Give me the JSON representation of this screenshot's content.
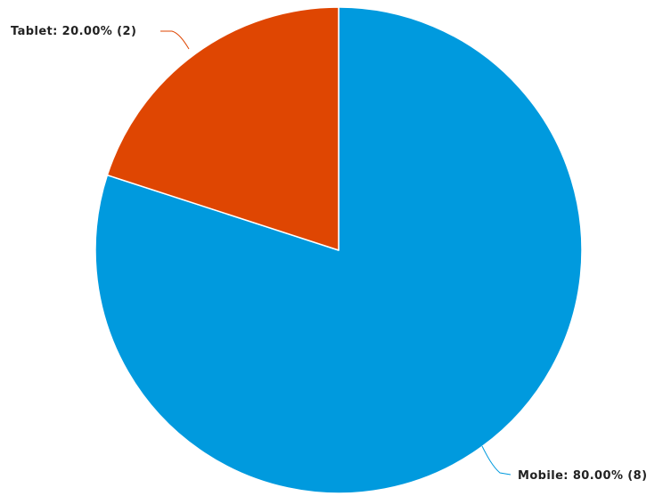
{
  "chart_data": {
    "type": "pie",
    "title": "",
    "start_angle_deg": 0,
    "direction": "clockwise",
    "slices": [
      {
        "label": "Mobile",
        "value": 8,
        "percent": "80.00%",
        "display": "Mobile: 80.00% (8)",
        "color": "#009ade"
      },
      {
        "label": "Tablet",
        "value": 2,
        "percent": "20.00%",
        "display": "Tablet: 20.00% (2)",
        "color": "#df4602"
      }
    ],
    "legend": "none",
    "data_labels": "outside with connector lines"
  }
}
